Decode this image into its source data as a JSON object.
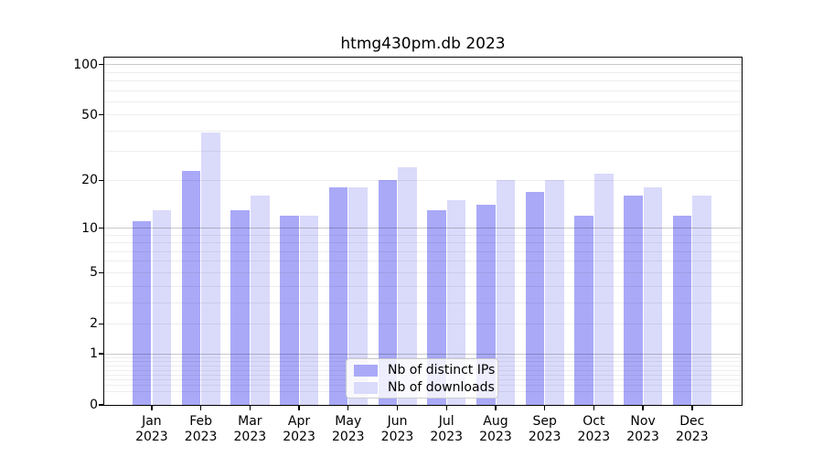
{
  "title": "htmg430pm.db 2023",
  "chart_data": {
    "type": "bar",
    "title": "htmg430pm.db 2023",
    "categories": [
      "Jan 2023",
      "Feb 2023",
      "Mar 2023",
      "Apr 2023",
      "May 2023",
      "Jun 2023",
      "Jul 2023",
      "Aug 2023",
      "Sep 2023",
      "Oct 2023",
      "Nov 2023",
      "Dec 2023"
    ],
    "series": [
      {
        "name": "Nb of distinct IPs",
        "color": "#a9a9f8",
        "values": [
          11,
          23,
          13,
          12,
          18,
          20,
          13,
          14,
          17,
          12,
          16,
          12
        ]
      },
      {
        "name": "Nb of downloads",
        "color": "#dadafb",
        "values": [
          13,
          39,
          16,
          12,
          18,
          24,
          15,
          20,
          20,
          22,
          18,
          16
        ]
      }
    ],
    "xlabel": "",
    "ylabel": "",
    "yscale": "log1p",
    "ylim": [
      0,
      110
    ],
    "y_ticks": [
      {
        "label": "100",
        "value": 100
      },
      {
        "label": "50",
        "value": 50
      },
      {
        "label": "20",
        "value": 20
      },
      {
        "label": "10",
        "value": 10
      },
      {
        "label": "5",
        "value": 5
      },
      {
        "label": "2",
        "value": 2
      },
      {
        "label": "1",
        "value": 1
      },
      {
        "label": "0",
        "value": 0
      }
    ],
    "y_major_grid": [
      1,
      10,
      100
    ],
    "y_minor_grid": [
      0.2,
      0.3,
      0.4,
      0.5,
      0.6,
      0.7,
      0.8,
      0.9,
      2,
      3,
      4,
      5,
      6,
      7,
      8,
      9,
      20,
      30,
      40,
      50,
      60,
      70,
      80,
      90
    ],
    "grid": true,
    "legend_position": "lower center"
  },
  "legend": {
    "items": [
      {
        "label": "Nb of distinct IPs"
      },
      {
        "label": "Nb of downloads"
      }
    ]
  }
}
